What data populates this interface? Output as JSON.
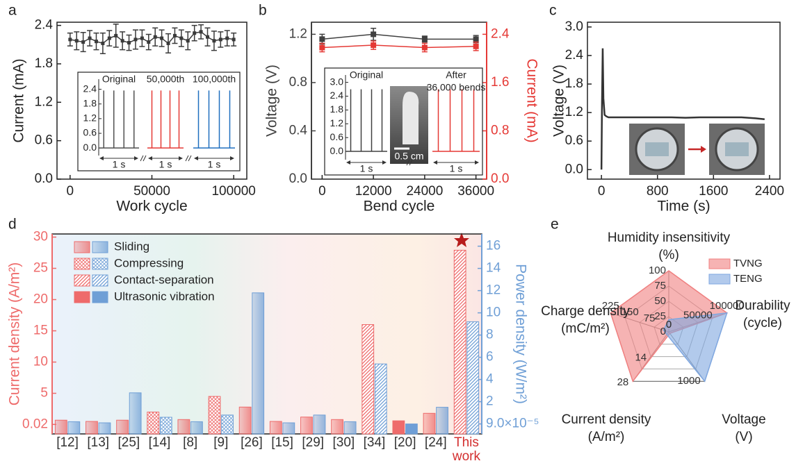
{
  "chart_data": [
    {
      "type": "line",
      "panel": "a",
      "x": [
        0,
        4000,
        8000,
        12000,
        16000,
        20000,
        24000,
        28000,
        32000,
        36000,
        40000,
        44000,
        48000,
        52000,
        56000,
        60000,
        64000,
        68000,
        72000,
        76000,
        80000,
        84000,
        88000,
        92000,
        96000,
        100000
      ],
      "series": [
        {
          "color": "#3a3a3a",
          "values": [
            2.18,
            2.16,
            2.14,
            2.2,
            2.15,
            2.12,
            2.2,
            2.24,
            2.16,
            2.13,
            2.18,
            2.2,
            2.14,
            2.22,
            2.2,
            2.12,
            2.24,
            2.2,
            2.16,
            2.28,
            2.3,
            2.22,
            2.16,
            2.18,
            2.2,
            2.18
          ],
          "errors": [
            0.1,
            0.14,
            0.15,
            0.12,
            0.13,
            0.16,
            0.12,
            0.18,
            0.14,
            0.12,
            0.15,
            0.13,
            0.12,
            0.14,
            0.13,
            0.15,
            0.12,
            0.13,
            0.14,
            0.12,
            0.11,
            0.14,
            0.15,
            0.12,
            0.12,
            0.1
          ]
        }
      ],
      "xlim": [
        -8000,
        108000
      ],
      "xticks": [
        0,
        50000,
        100000
      ],
      "ylim": [
        0,
        2.45
      ],
      "yticks": [
        {
          "value": 0,
          "label": "0.0"
        },
        0.6,
        1.2,
        1.8,
        2.4
      ],
      "xlabel": "Work cycle",
      "ylabel": "Current (mA)",
      "inset": {
        "ylim": [
          -0.25,
          2.7
        ],
        "yticks": [
          {
            "value": 0,
            "label": "0.0"
          },
          0.6,
          1.2,
          1.8,
          2.4
        ],
        "groups": [
          {
            "label": [
              "Original"
            ],
            "color": "#505050",
            "peak": 2.35
          },
          {
            "label": [
              "50,000th"
            ],
            "color": "#e53935",
            "peak": 2.35
          },
          {
            "label": [
              "100,000th"
            ],
            "color": "#1f6fbf",
            "peak": 2.35
          }
        ],
        "scale_label": "1 s"
      }
    },
    {
      "type": "line",
      "panel": "b",
      "x": [
        0,
        12000,
        24000,
        36000
      ],
      "series": [
        {
          "color": "#404040",
          "values": [
            1.16,
            1.2,
            1.16,
            1.16
          ],
          "errors": [
            0.04,
            0.05,
            0.025,
            0.03
          ]
        },
        {
          "color": "#e53935",
          "axis": "y2",
          "values": [
            2.18,
            2.22,
            2.18,
            2.2
          ],
          "errors": [
            0.07,
            0.07,
            0.07,
            0.07
          ]
        }
      ],
      "xlim": [
        -2500,
        38500
      ],
      "xticks": [
        0,
        12000,
        24000,
        36000
      ],
      "ylim": [
        0,
        1.3
      ],
      "yticks": [
        {
          "value": 0,
          "label": "0.0"
        },
        0.4,
        0.8,
        1.2
      ],
      "y2lim": [
        0,
        2.6
      ],
      "y2ticks": [
        {
          "value": 0,
          "label": "0.0"
        },
        0.8,
        1.6,
        2.4
      ],
      "xlabel": "Bend cycle",
      "ylabel": "Voltage (V)",
      "y2label": "Current (mA)",
      "inset": {
        "ylim": [
          -0.3,
          3.2
        ],
        "yticks": [
          {
            "value": 0,
            "label": "0.0"
          },
          0.6,
          1.2,
          1.8,
          2.4,
          {
            "value": 3,
            "label": "3.0"
          }
        ],
        "groups": [
          {
            "label": [
              "Original"
            ],
            "color": "#404040",
            "peak": 2.7
          },
          {
            "label": [
              "After",
              "36,000 bends"
            ],
            "color": "#e53935",
            "peak": 2.7
          }
        ],
        "scale_label": "1 s",
        "photo_label": "0.5 cm"
      }
    },
    {
      "type": "line",
      "panel": "c",
      "x": [
        0,
        8,
        18,
        28,
        45,
        70,
        100,
        200,
        400,
        600,
        800,
        1000,
        1200,
        1400,
        1600,
        1800,
        2000,
        2200,
        2330
      ],
      "series": [
        {
          "color": "#333333",
          "values": [
            0.0,
            1.4,
            2.55,
            1.5,
            1.15,
            1.12,
            1.1,
            1.1,
            1.1,
            1.1,
            1.1,
            1.1,
            1.09,
            1.1,
            1.1,
            1.1,
            1.1,
            1.08,
            1.06
          ]
        }
      ],
      "xlim": [
        -200,
        2550
      ],
      "xticks": [
        0,
        800,
        1600,
        2400
      ],
      "ylim": [
        -0.2,
        3.1
      ],
      "yticks": [
        {
          "value": 0,
          "label": "0.0"
        },
        0.6,
        1.2,
        1.8,
        2.4,
        {
          "value": 3,
          "label": "3.0"
        }
      ],
      "xlabel": "Time (s)",
      "ylabel": "Voltage (V)"
    },
    {
      "type": "bar",
      "panel": "d",
      "categories": [
        "[12]",
        "[13]",
        "[25]",
        "[14]",
        "[8]",
        "[9]",
        "[26]",
        "[15]",
        "[29]",
        "[30]",
        "[34]",
        "[20]",
        "[24]",
        "This work"
      ],
      "bar_modes": [
        "Sliding",
        "Sliding",
        "Sliding",
        "Compressing",
        "Sliding",
        "Compressing",
        "Sliding",
        "Sliding",
        "Sliding",
        "Sliding",
        "Contact-separation",
        "Ultrasonic vibration",
        "Sliding",
        "Contact-separation"
      ],
      "legend": [
        {
          "name": "Sliding",
          "style": "gradient"
        },
        {
          "name": "Compressing",
          "style": "crosshatch"
        },
        {
          "name": "Contact-separation",
          "style": "hatch"
        },
        {
          "name": "Ultrasonic vibration",
          "style": "solid"
        }
      ],
      "series": [
        {
          "color": "#ee6b6b",
          "values": [
            0.7,
            0.5,
            0.7,
            2.0,
            0.8,
            4.5,
            2.8,
            0.5,
            1.2,
            0.8,
            16,
            0.6,
            1.8,
            27.9
          ]
        },
        {
          "color": "#6f9fd6",
          "axis": "y2",
          "values": [
            0.2,
            0.1,
            2.8,
            0.6,
            0.2,
            0.8,
            11.8,
            0.1,
            0.8,
            0.2,
            5.4,
            9e-05,
            1.5,
            9.2
          ]
        }
      ],
      "ylim": [
        -1.5,
        30.5
      ],
      "yticks": [
        0.02,
        5,
        10,
        15,
        20,
        25,
        30
      ],
      "y2lim": [
        -0.9,
        17.1
      ],
      "y2ticks": [
        {
          "value": 9e-05,
          "label": "9.0×10⁻⁵"
        },
        2,
        4,
        6,
        8,
        10,
        12,
        14,
        16
      ],
      "ylabel": "Current density (A/m²)",
      "y2label": "Power density (W/m²)"
    },
    {
      "type": "radar",
      "panel": "e",
      "axes": [
        {
          "label": "Humidity insensitivity",
          "unit": "(%)",
          "lim": [
            0,
            100
          ],
          "ticks": [
            0,
            25,
            50,
            75,
            100
          ]
        },
        {
          "label": "Durability",
          "unit": "(cycle)",
          "lim": [
            0,
            100000
          ],
          "ticks": [
            0,
            50000,
            100000
          ]
        },
        {
          "label": "Voltage",
          "unit": "(V)",
          "lim": [
            0,
            1000
          ],
          "ticks": [
            1000
          ]
        },
        {
          "label": "Current density",
          "unit": "(A/m²)",
          "lim": [
            0,
            28
          ],
          "ticks": [
            14,
            28
          ]
        },
        {
          "label": "Charge density",
          "unit": "(mC/m²)",
          "lim": [
            0,
            225
          ],
          "ticks": [
            0,
            75,
            150,
            225
          ]
        }
      ],
      "series": [
        {
          "name": "TVNG",
          "color": "#f08080",
          "values": [
            100,
            100000,
            30,
            28,
            225
          ]
        },
        {
          "name": "TENG",
          "color": "#7fa7e0",
          "values": [
            20,
            100000,
            1000,
            1.5,
            20
          ]
        }
      ]
    }
  ]
}
